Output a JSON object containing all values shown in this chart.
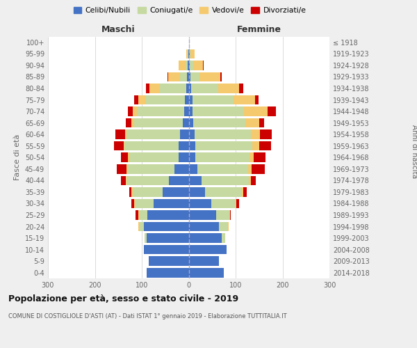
{
  "age_groups": [
    "0-4",
    "5-9",
    "10-14",
    "15-19",
    "20-24",
    "25-29",
    "30-34",
    "35-39",
    "40-44",
    "45-49",
    "50-54",
    "55-59",
    "60-64",
    "65-69",
    "70-74",
    "75-79",
    "80-84",
    "85-89",
    "90-94",
    "95-99",
    "100+"
  ],
  "birth_years": [
    "2014-2018",
    "2009-2013",
    "2004-2008",
    "1999-2003",
    "1994-1998",
    "1989-1993",
    "1984-1988",
    "1979-1983",
    "1974-1978",
    "1969-1973",
    "1964-1968",
    "1959-1963",
    "1954-1958",
    "1949-1953",
    "1944-1948",
    "1939-1943",
    "1934-1938",
    "1929-1933",
    "1924-1928",
    "1919-1923",
    "≤ 1918"
  ],
  "male_celibi": [
    90,
    85,
    95,
    90,
    95,
    88,
    75,
    55,
    42,
    30,
    22,
    22,
    18,
    12,
    10,
    8,
    5,
    3,
    2,
    1,
    0
  ],
  "male_coniugati": [
    0,
    0,
    0,
    4,
    10,
    18,
    40,
    65,
    90,
    100,
    105,
    115,
    115,
    105,
    100,
    85,
    58,
    15,
    5,
    1,
    0
  ],
  "male_vedovi": [
    0,
    0,
    0,
    0,
    2,
    2,
    2,
    2,
    2,
    2,
    2,
    2,
    3,
    5,
    10,
    15,
    20,
    25,
    15,
    3,
    0
  ],
  "male_divorziati": [
    0,
    0,
    0,
    0,
    0,
    5,
    5,
    5,
    10,
    22,
    15,
    20,
    20,
    12,
    10,
    8,
    8,
    2,
    0,
    0,
    0
  ],
  "female_celibi": [
    75,
    65,
    80,
    70,
    65,
    58,
    48,
    35,
    28,
    18,
    14,
    14,
    12,
    10,
    8,
    8,
    5,
    3,
    2,
    2,
    0
  ],
  "female_coniugati": [
    0,
    0,
    0,
    8,
    18,
    28,
    52,
    78,
    100,
    108,
    115,
    122,
    120,
    110,
    110,
    88,
    58,
    20,
    8,
    2,
    0
  ],
  "female_vedovi": [
    0,
    0,
    0,
    0,
    2,
    2,
    2,
    3,
    5,
    8,
    10,
    14,
    20,
    30,
    50,
    45,
    45,
    45,
    20,
    8,
    2
  ],
  "female_divorziati": [
    0,
    0,
    0,
    0,
    0,
    2,
    5,
    8,
    10,
    28,
    25,
    25,
    25,
    10,
    18,
    8,
    8,
    2,
    2,
    0,
    0
  ],
  "colors": {
    "celibi": "#4472C4",
    "coniugati": "#c5d9a0",
    "vedovi": "#f5c96e",
    "divorziati": "#cc0000"
  },
  "title1": "Popolazione per età, sesso e stato civile - 2019",
  "title2": "COMUNE DI COSTIGLIOLE D'ASTI (AT) - Dati ISTAT 1° gennaio 2019 - Elaborazione TUTTITALIA.IT",
  "xlabel_left": "Maschi",
  "xlabel_right": "Femmine",
  "ylabel_left": "Fasce di età",
  "ylabel_right": "Anni di nascita",
  "xlim": 300,
  "bg_color": "#efefef",
  "plot_bg": "#ffffff"
}
